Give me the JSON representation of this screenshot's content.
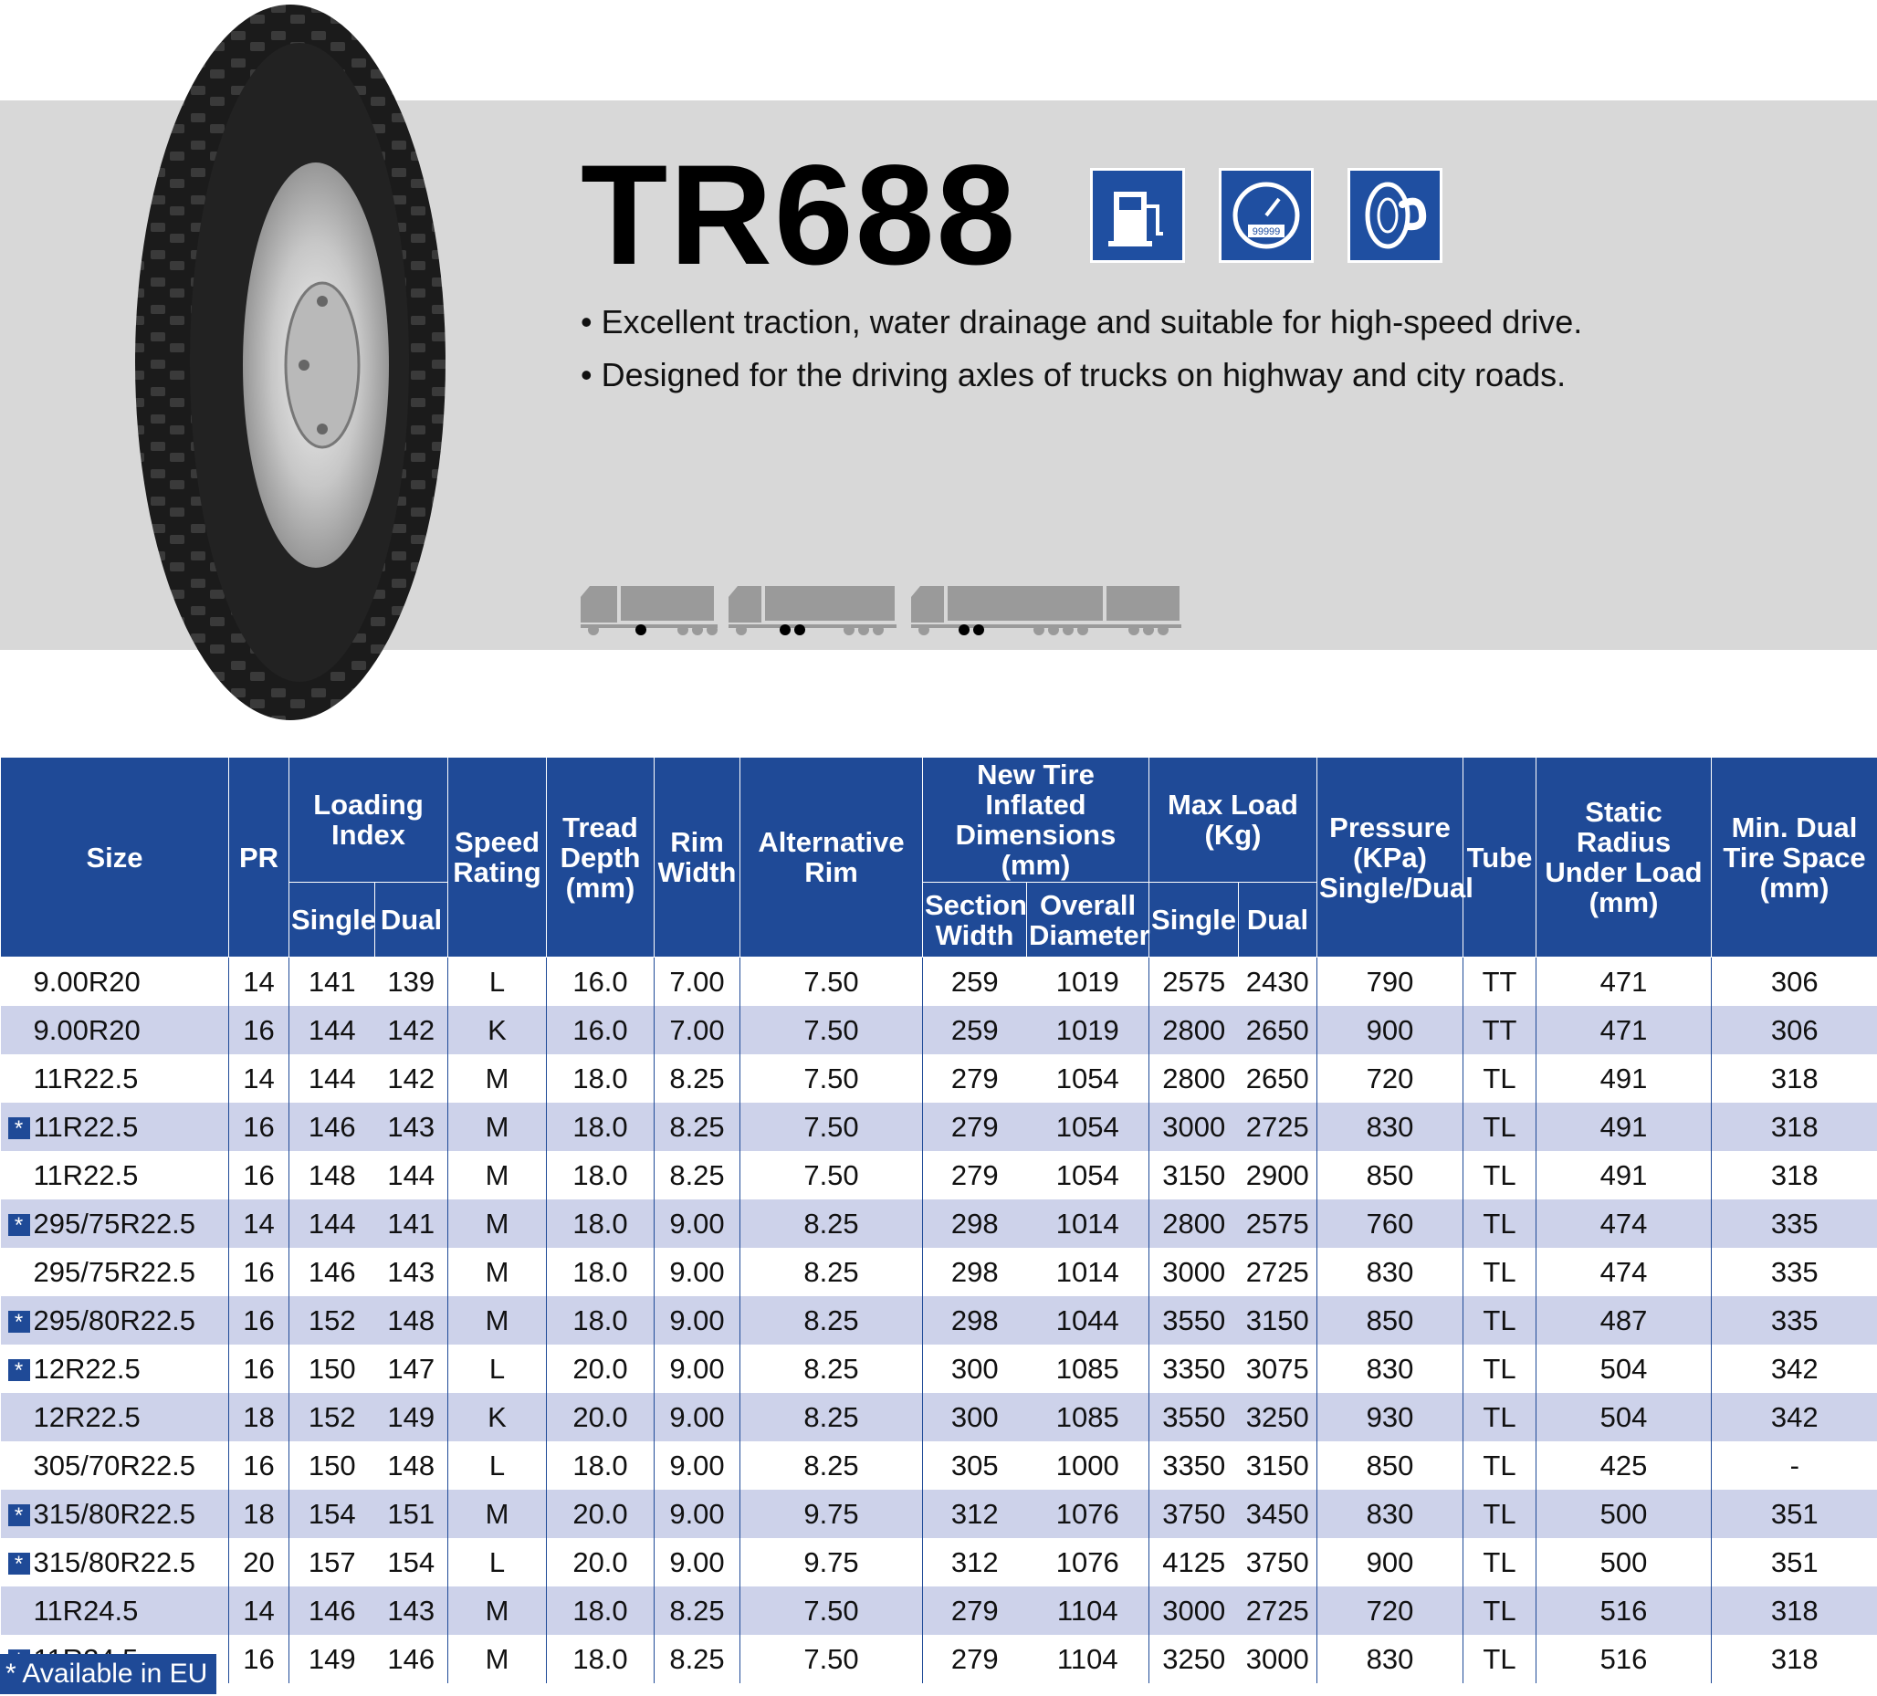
{
  "product": {
    "model": "TR688",
    "features": [
      "• Excellent traction, water drainage and suitable for high-speed drive.",
      "• Designed for the driving axles of trucks on highway and city roads."
    ],
    "icons": [
      "fuel-efficiency-icon",
      "mileage-odometer-icon",
      "tread-strength-icon"
    ],
    "icon_labels": {
      "mileage": "99999"
    },
    "truck_icons": [
      "truck-single-axle-trailer-icon",
      "truck-tandem-axle-trailer-icon",
      "truck-road-train-icon"
    ]
  },
  "table": {
    "headers": {
      "size": "Size",
      "pr": "PR",
      "loading_index": "Loading Index",
      "loading_single": "Single",
      "loading_dual": "Dual",
      "speed_rating": "Speed Rating",
      "tread_depth": "Tread Depth (mm)",
      "rim_width": "Rim Width",
      "alt_rim": "Alternative Rim",
      "inflated_dims": "New Tire Inflated Dimensions (mm)",
      "section_width": "Section Width",
      "overall_diameter": "Overall Diameter",
      "max_load": "Max Load (Kg)",
      "max_single": "Single",
      "max_dual": "Dual",
      "pressure": "Pressure (KPa) Single/Dual",
      "tube": "Tube",
      "static_radius": "Static Radius Under Load (mm)",
      "min_dual": "Min. Dual Tire Space (mm)"
    },
    "rows": [
      {
        "eu": false,
        "size": "9.00R20",
        "pr": "14",
        "li_single": "141",
        "li_dual": "139",
        "speed": "L",
        "tread": "16.0",
        "rim": "7.00",
        "alt_rim": "7.50",
        "section": "259",
        "diameter": "1019",
        "load_single": "2575",
        "load_dual": "2430",
        "pressure": "790",
        "tube": "TT",
        "radius": "471",
        "dual_space": "306"
      },
      {
        "eu": false,
        "size": "9.00R20",
        "pr": "16",
        "li_single": "144",
        "li_dual": "142",
        "speed": "K",
        "tread": "16.0",
        "rim": "7.00",
        "alt_rim": "7.50",
        "section": "259",
        "diameter": "1019",
        "load_single": "2800",
        "load_dual": "2650",
        "pressure": "900",
        "tube": "TT",
        "radius": "471",
        "dual_space": "306"
      },
      {
        "eu": false,
        "size": "11R22.5",
        "pr": "14",
        "li_single": "144",
        "li_dual": "142",
        "speed": "M",
        "tread": "18.0",
        "rim": "8.25",
        "alt_rim": "7.50",
        "section": "279",
        "diameter": "1054",
        "load_single": "2800",
        "load_dual": "2650",
        "pressure": "720",
        "tube": "TL",
        "radius": "491",
        "dual_space": "318"
      },
      {
        "eu": true,
        "size": "11R22.5",
        "pr": "16",
        "li_single": "146",
        "li_dual": "143",
        "speed": "M",
        "tread": "18.0",
        "rim": "8.25",
        "alt_rim": "7.50",
        "section": "279",
        "diameter": "1054",
        "load_single": "3000",
        "load_dual": "2725",
        "pressure": "830",
        "tube": "TL",
        "radius": "491",
        "dual_space": "318"
      },
      {
        "eu": false,
        "size": "11R22.5",
        "pr": "16",
        "li_single": "148",
        "li_dual": "144",
        "speed": "M",
        "tread": "18.0",
        "rim": "8.25",
        "alt_rim": "7.50",
        "section": "279",
        "diameter": "1054",
        "load_single": "3150",
        "load_dual": "2900",
        "pressure": "850",
        "tube": "TL",
        "radius": "491",
        "dual_space": "318"
      },
      {
        "eu": true,
        "size": "295/75R22.5",
        "pr": "14",
        "li_single": "144",
        "li_dual": "141",
        "speed": "M",
        "tread": "18.0",
        "rim": "9.00",
        "alt_rim": "8.25",
        "section": "298",
        "diameter": "1014",
        "load_single": "2800",
        "load_dual": "2575",
        "pressure": "760",
        "tube": "TL",
        "radius": "474",
        "dual_space": "335"
      },
      {
        "eu": false,
        "size": "295/75R22.5",
        "pr": "16",
        "li_single": "146",
        "li_dual": "143",
        "speed": "M",
        "tread": "18.0",
        "rim": "9.00",
        "alt_rim": "8.25",
        "section": "298",
        "diameter": "1014",
        "load_single": "3000",
        "load_dual": "2725",
        "pressure": "830",
        "tube": "TL",
        "radius": "474",
        "dual_space": "335"
      },
      {
        "eu": true,
        "size": "295/80R22.5",
        "pr": "16",
        "li_single": "152",
        "li_dual": "148",
        "speed": "M",
        "tread": "18.0",
        "rim": "9.00",
        "alt_rim": "8.25",
        "section": "298",
        "diameter": "1044",
        "load_single": "3550",
        "load_dual": "3150",
        "pressure": "850",
        "tube": "TL",
        "radius": "487",
        "dual_space": "335"
      },
      {
        "eu": true,
        "size": "12R22.5",
        "pr": "16",
        "li_single": "150",
        "li_dual": "147",
        "speed": "L",
        "tread": "20.0",
        "rim": "9.00",
        "alt_rim": "8.25",
        "section": "300",
        "diameter": "1085",
        "load_single": "3350",
        "load_dual": "3075",
        "pressure": "830",
        "tube": "TL",
        "radius": "504",
        "dual_space": "342"
      },
      {
        "eu": false,
        "size": "12R22.5",
        "pr": "18",
        "li_single": "152",
        "li_dual": "149",
        "speed": "K",
        "tread": "20.0",
        "rim": "9.00",
        "alt_rim": "8.25",
        "section": "300",
        "diameter": "1085",
        "load_single": "3550",
        "load_dual": "3250",
        "pressure": "930",
        "tube": "TL",
        "radius": "504",
        "dual_space": "342"
      },
      {
        "eu": false,
        "size": "305/70R22.5",
        "pr": "16",
        "li_single": "150",
        "li_dual": "148",
        "speed": "L",
        "tread": "18.0",
        "rim": "9.00",
        "alt_rim": "8.25",
        "section": "305",
        "diameter": "1000",
        "load_single": "3350",
        "load_dual": "3150",
        "pressure": "850",
        "tube": "TL",
        "radius": "425",
        "dual_space": "-"
      },
      {
        "eu": true,
        "size": "315/80R22.5",
        "pr": "18",
        "li_single": "154",
        "li_dual": "151",
        "speed": "M",
        "tread": "20.0",
        "rim": "9.00",
        "alt_rim": "9.75",
        "section": "312",
        "diameter": "1076",
        "load_single": "3750",
        "load_dual": "3450",
        "pressure": "830",
        "tube": "TL",
        "radius": "500",
        "dual_space": "351"
      },
      {
        "eu": true,
        "size": "315/80R22.5",
        "pr": "20",
        "li_single": "157",
        "li_dual": "154",
        "speed": "L",
        "tread": "20.0",
        "rim": "9.00",
        "alt_rim": "9.75",
        "section": "312",
        "diameter": "1076",
        "load_single": "4125",
        "load_dual": "3750",
        "pressure": "900",
        "tube": "TL",
        "radius": "500",
        "dual_space": "351"
      },
      {
        "eu": false,
        "size": "11R24.5",
        "pr": "14",
        "li_single": "146",
        "li_dual": "143",
        "speed": "M",
        "tread": "18.0",
        "rim": "8.25",
        "alt_rim": "7.50",
        "section": "279",
        "diameter": "1104",
        "load_single": "3000",
        "load_dual": "2725",
        "pressure": "720",
        "tube": "TL",
        "radius": "516",
        "dual_space": "318"
      },
      {
        "eu": true,
        "size": "11R24.5",
        "pr": "16",
        "li_single": "149",
        "li_dual": "146",
        "speed": "M",
        "tread": "18.0",
        "rim": "8.25",
        "alt_rim": "7.50",
        "section": "279",
        "diameter": "1104",
        "load_single": "3250",
        "load_dual": "3000",
        "pressure": "830",
        "tube": "TL",
        "radius": "516",
        "dual_space": "318"
      }
    ]
  },
  "legend": {
    "star": "*",
    "label": "Available in EU"
  },
  "colors": {
    "header_blue": "#1f4a97",
    "stripe": "#cdd2ea",
    "banner_gray": "#d8d8d8",
    "icon_blue": "#1f4fa1"
  }
}
